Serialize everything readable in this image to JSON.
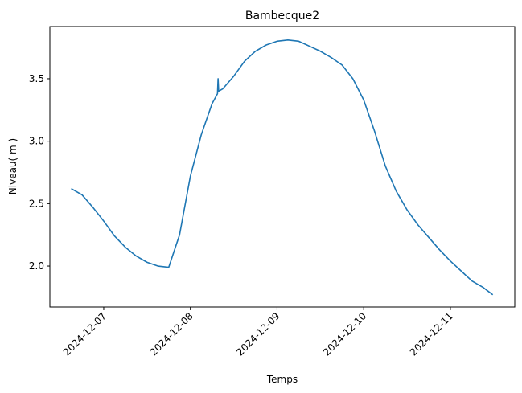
{
  "chart_data": {
    "type": "line",
    "title": "Bambecque2",
    "xlabel": "Temps",
    "ylabel": "Niveau( m )",
    "x": [
      "2024-12-06T15:00",
      "2024-12-06T18:00",
      "2024-12-06T21:00",
      "2024-12-07T00:00",
      "2024-12-07T03:00",
      "2024-12-07T06:00",
      "2024-12-07T09:00",
      "2024-12-07T12:00",
      "2024-12-07T15:00",
      "2024-12-07T18:00",
      "2024-12-07T21:00",
      "2024-12-08T00:00",
      "2024-12-08T03:00",
      "2024-12-08T06:00",
      "2024-12-08T07:30",
      "2024-12-08T07:40",
      "2024-12-08T07:50",
      "2024-12-08T09:00",
      "2024-12-08T12:00",
      "2024-12-08T15:00",
      "2024-12-08T18:00",
      "2024-12-08T21:00",
      "2024-12-09T00:00",
      "2024-12-09T03:00",
      "2024-12-09T06:00",
      "2024-12-09T09:00",
      "2024-12-09T12:00",
      "2024-12-09T15:00",
      "2024-12-09T18:00",
      "2024-12-09T21:00",
      "2024-12-10T00:00",
      "2024-12-10T03:00",
      "2024-12-10T06:00",
      "2024-12-10T09:00",
      "2024-12-10T12:00",
      "2024-12-10T15:00",
      "2024-12-10T18:00",
      "2024-12-10T21:00",
      "2024-12-11T00:00",
      "2024-12-11T03:00",
      "2024-12-11T06:00",
      "2024-12-11T09:00",
      "2024-12-11T11:45"
    ],
    "series": [
      {
        "name": "Niveau",
        "color": "#1f77b4",
        "values": [
          2.62,
          2.57,
          2.47,
          2.36,
          2.24,
          2.15,
          2.08,
          2.03,
          2.0,
          1.99,
          2.25,
          2.72,
          3.05,
          3.3,
          3.38,
          3.5,
          3.4,
          3.42,
          3.52,
          3.64,
          3.72,
          3.77,
          3.8,
          3.81,
          3.8,
          3.76,
          3.72,
          3.67,
          3.61,
          3.5,
          3.33,
          3.08,
          2.8,
          2.6,
          2.45,
          2.33,
          2.23,
          2.13,
          2.04,
          1.96,
          1.88,
          1.83,
          1.77
        ]
      }
    ],
    "xlim": [
      "2024-12-06T09:05",
      "2024-12-11T17:50"
    ],
    "xticks": [
      "2024-12-07",
      "2024-12-08",
      "2024-12-09",
      "2024-12-10",
      "2024-12-11"
    ],
    "ylim": [
      1.672,
      3.918
    ],
    "yticks": [
      {
        "value": 2,
        "label": "2.0"
      },
      2.5,
      {
        "value": 3,
        "label": "3.0"
      },
      3.5
    ]
  }
}
